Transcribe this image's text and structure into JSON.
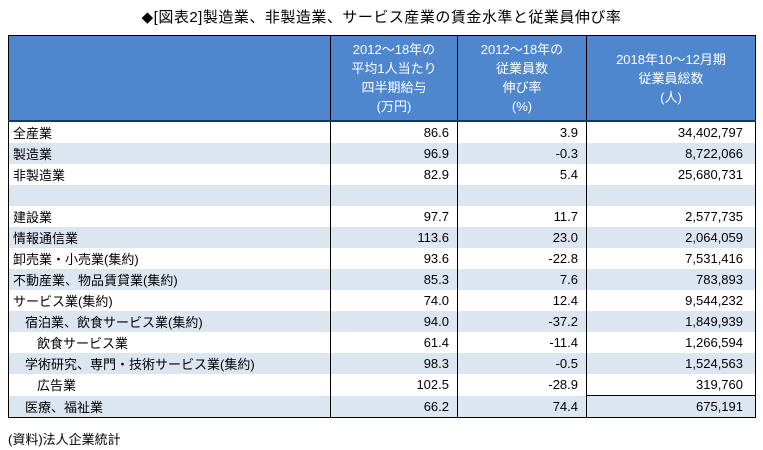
{
  "colors": {
    "header_bg": "#4F87CE",
    "header_text": "#FFFFFF",
    "stripe_bg": "#DCE6F1",
    "header_rule": "#17375E",
    "grid_border": "#000000"
  },
  "chart_data": {
    "type": "table",
    "title": "◆[図表2]製造業、非製造業、サービス産業の賃金水準と従業員伸び率",
    "source": "(資料)法人企業統計",
    "columns": [
      "",
      "2012〜18年の\n平均1人当たり\n四半期給与\n(万円)",
      "2012〜18年の\n従業員数\n伸び率\n(%)",
      "2018年10〜12月期\n従業員総数\n(人)"
    ],
    "rows": [
      {
        "label": "全産業",
        "indent": 0,
        "values": [
          "86.6",
          "3.9",
          "34,402,797"
        ]
      },
      {
        "label": "製造業",
        "indent": 0,
        "values": [
          "96.9",
          "-0.3",
          "8,722,066"
        ]
      },
      {
        "label": "非製造業",
        "indent": 0,
        "values": [
          "82.9",
          "5.4",
          "25,680,731"
        ]
      },
      {
        "label": "",
        "indent": 0,
        "values": [
          "",
          "",
          ""
        ]
      },
      {
        "label": "建設業",
        "indent": 0,
        "values": [
          "97.7",
          "11.7",
          "2,577,735"
        ]
      },
      {
        "label": "情報通信業",
        "indent": 0,
        "values": [
          "113.6",
          "23.0",
          "2,064,059"
        ]
      },
      {
        "label": "卸売業・小売業(集約)",
        "indent": 0,
        "values": [
          "93.6",
          "-22.8",
          "7,531,416"
        ]
      },
      {
        "label": "不動産業、物品賃貸業(集約)",
        "indent": 0,
        "values": [
          "85.3",
          "7.6",
          "783,893"
        ]
      },
      {
        "label": "サービス業(集約)",
        "indent": 0,
        "values": [
          "74.0",
          "12.4",
          "9,544,232"
        ]
      },
      {
        "label": "宿泊業、飲食サービス業(集約)",
        "indent": 1,
        "values": [
          "94.0",
          "-37.2",
          "1,849,939"
        ]
      },
      {
        "label": "飲食サービス業",
        "indent": 2,
        "values": [
          "61.4",
          "-11.4",
          "1,266,594"
        ]
      },
      {
        "label": "学術研究、専門・技術サービス業(集約)",
        "indent": 1,
        "values": [
          "98.3",
          "-0.5",
          "1,524,563"
        ]
      },
      {
        "label": "広告業",
        "indent": 2,
        "values": [
          "102.5",
          "-28.9",
          "319,760"
        ]
      },
      {
        "label": "医療、福祉業",
        "indent": 1,
        "values": [
          "66.2",
          "74.4",
          "675,191"
        ]
      }
    ]
  }
}
